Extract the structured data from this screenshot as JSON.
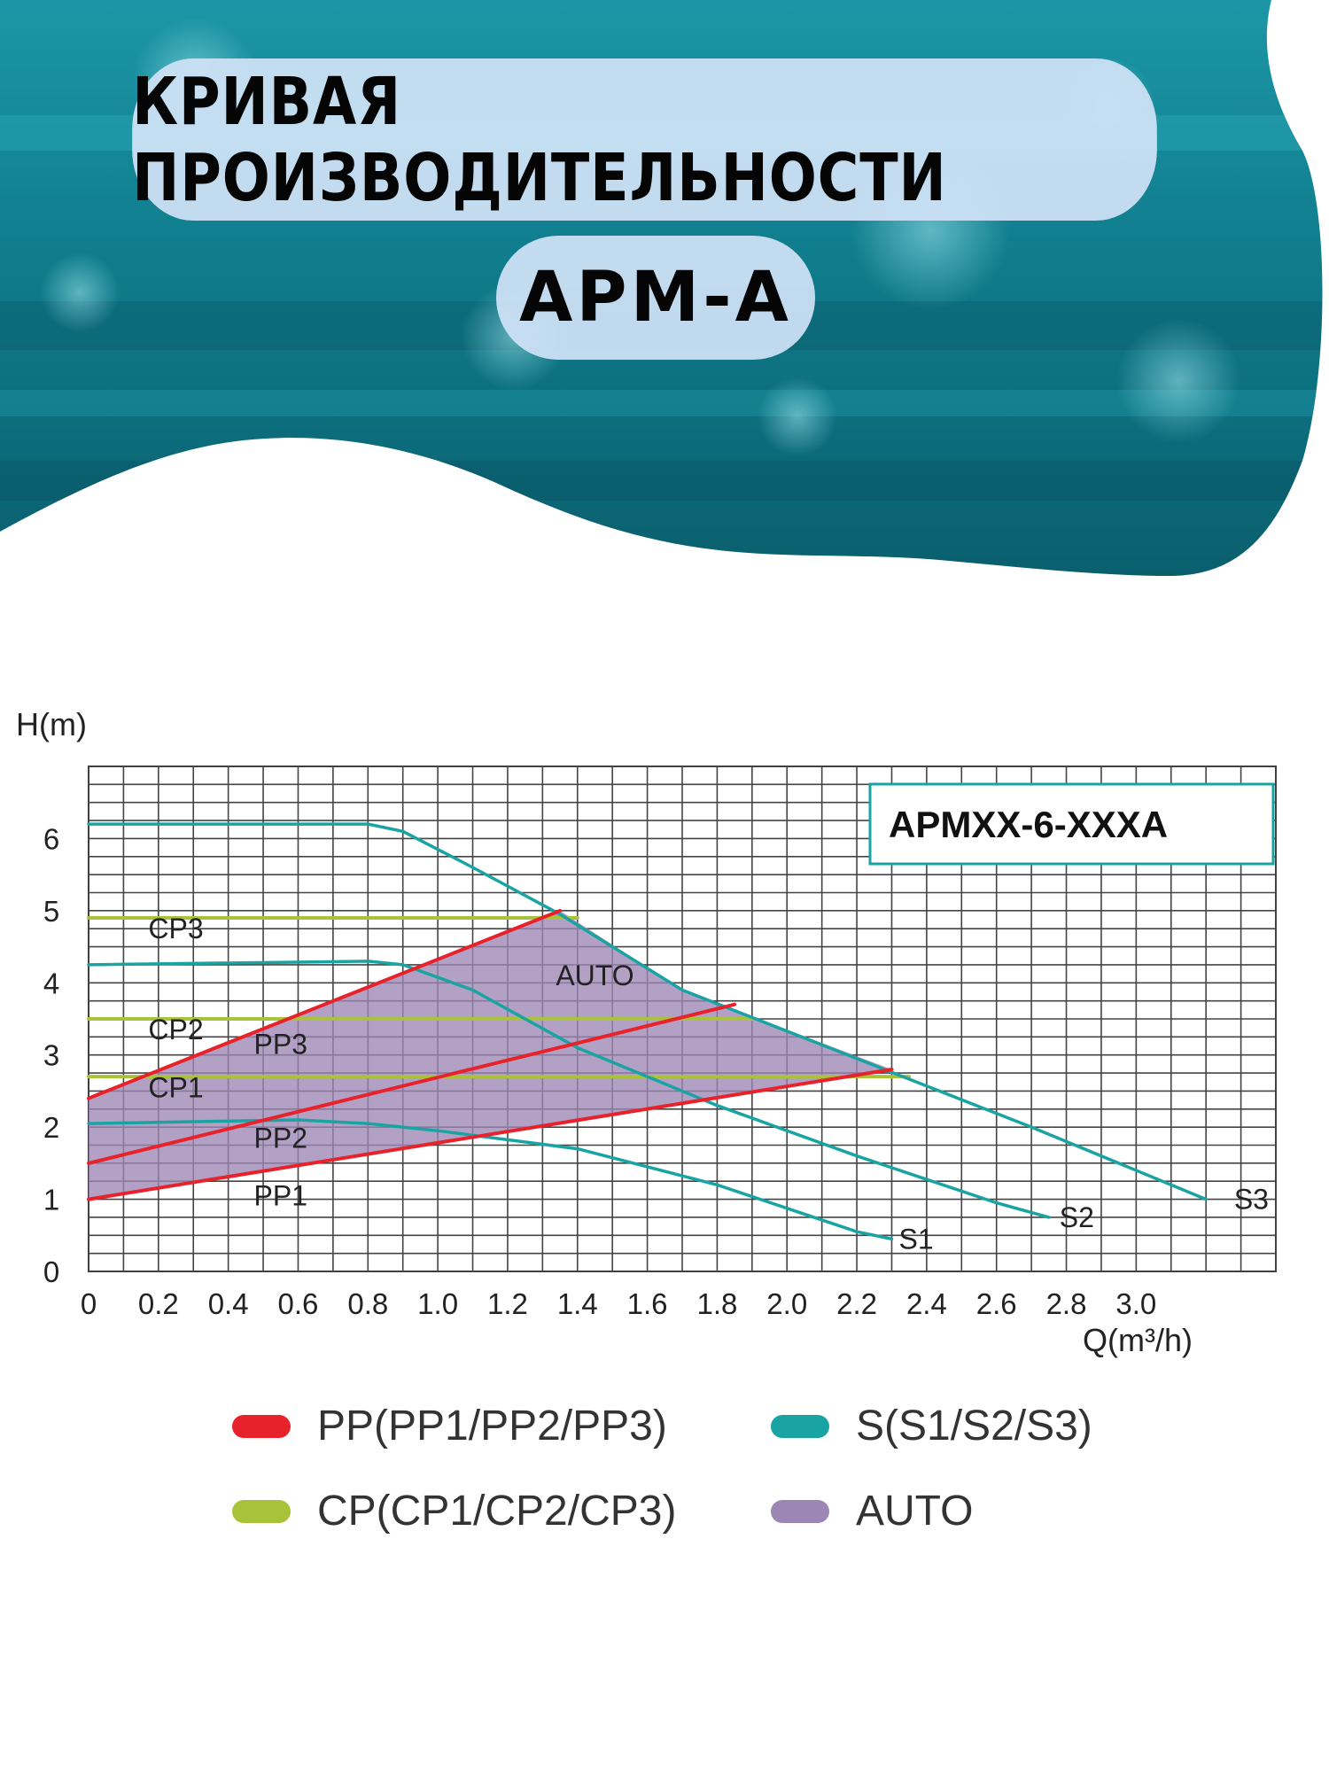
{
  "header": {
    "title": "КРИВАЯ ПРОИЗВОДИТЕЛЬНОСТИ",
    "subtitle": "APM-A"
  },
  "colors": {
    "water_dark": "#0a6a78",
    "water_light": "#2fb2c0",
    "pill_bg": "#d0e2f6",
    "pp": "#e8222a",
    "s": "#1aa3a3",
    "cp": "#a8c23a",
    "auto": "#9c86b4"
  },
  "chart_data": {
    "type": "line",
    "model_label": "APMXX-6-XXXA",
    "ylabel": "H(m)",
    "xlabel": "Q(m³/h)",
    "xlim": [
      0,
      3.4
    ],
    "ylim": [
      0,
      7
    ],
    "x_ticks": [
      "0",
      "0.2",
      "0.4",
      "0.6",
      "0.8",
      "1.0",
      "1.2",
      "1.4",
      "1.6",
      "1.8",
      "2.0",
      "2.2",
      "2.4",
      "2.6",
      "2.8",
      "3.0"
    ],
    "y_ticks": [
      "0",
      "1",
      "2",
      "3",
      "4",
      "5",
      "6"
    ],
    "grid": true,
    "series": [
      {
        "name": "S1",
        "group": "S",
        "points": [
          [
            0,
            2.05
          ],
          [
            0.6,
            2.1
          ],
          [
            0.8,
            2.05
          ],
          [
            1.0,
            1.95
          ],
          [
            1.4,
            1.7
          ],
          [
            1.8,
            1.2
          ],
          [
            2.2,
            0.55
          ],
          [
            2.3,
            0.45
          ]
        ]
      },
      {
        "name": "S2",
        "group": "S",
        "points": [
          [
            0,
            4.25
          ],
          [
            0.8,
            4.3
          ],
          [
            0.9,
            4.25
          ],
          [
            1.1,
            3.9
          ],
          [
            1.4,
            3.1
          ],
          [
            1.8,
            2.3
          ],
          [
            2.2,
            1.6
          ],
          [
            2.6,
            0.95
          ],
          [
            2.75,
            0.75
          ]
        ]
      },
      {
        "name": "S3",
        "group": "S",
        "points": [
          [
            0,
            6.2
          ],
          [
            0.8,
            6.2
          ],
          [
            0.9,
            6.1
          ],
          [
            1.1,
            5.6
          ],
          [
            1.35,
            4.95
          ],
          [
            1.7,
            3.9
          ],
          [
            2.2,
            2.95
          ],
          [
            2.7,
            2.0
          ],
          [
            3.2,
            1.0
          ]
        ]
      },
      {
        "name": "CP1",
        "group": "CP",
        "points": [
          [
            0,
            2.7
          ],
          [
            2.35,
            2.7
          ]
        ]
      },
      {
        "name": "CP2",
        "group": "CP",
        "points": [
          [
            0,
            3.5
          ],
          [
            1.9,
            3.5
          ]
        ]
      },
      {
        "name": "CP3",
        "group": "CP",
        "points": [
          [
            0,
            4.9
          ],
          [
            1.4,
            4.9
          ]
        ]
      },
      {
        "name": "PP1",
        "group": "PP",
        "points": [
          [
            0,
            1.0
          ],
          [
            2.3,
            2.8
          ]
        ]
      },
      {
        "name": "PP2",
        "group": "PP",
        "points": [
          [
            0,
            1.5
          ],
          [
            1.85,
            3.7
          ]
        ]
      },
      {
        "name": "PP3",
        "group": "PP",
        "points": [
          [
            0,
            2.4
          ],
          [
            1.35,
            5.0
          ]
        ]
      }
    ],
    "auto_region": [
      [
        0,
        1.0
      ],
      [
        0,
        2.4
      ],
      [
        1.35,
        5.0
      ],
      [
        1.7,
        3.9
      ],
      [
        2.3,
        2.8
      ]
    ],
    "annotations": [
      {
        "text": "CP3",
        "x": 0.25,
        "y": 4.75
      },
      {
        "text": "CP2",
        "x": 0.25,
        "y": 3.35
      },
      {
        "text": "CP1",
        "x": 0.25,
        "y": 2.55
      },
      {
        "text": "PP3",
        "x": 0.55,
        "y": 3.15
      },
      {
        "text": "PP2",
        "x": 0.55,
        "y": 1.85
      },
      {
        "text": "PP1",
        "x": 0.55,
        "y": 1.05
      },
      {
        "text": "AUTO",
        "x": 1.45,
        "y": 4.1
      },
      {
        "text": "S1",
        "x": 2.37,
        "y": 0.45
      },
      {
        "text": "S2",
        "x": 2.83,
        "y": 0.75
      },
      {
        "text": "S3",
        "x": 3.33,
        "y": 1.0
      }
    ],
    "legend": [
      {
        "key": "pp",
        "label": "PP(PP1/PP2/PP3)"
      },
      {
        "key": "s",
        "label": "S(S1/S2/S3)"
      },
      {
        "key": "cp",
        "label": "CP(CP1/CP2/CP3)"
      },
      {
        "key": "auto",
        "label": "AUTO"
      }
    ]
  }
}
